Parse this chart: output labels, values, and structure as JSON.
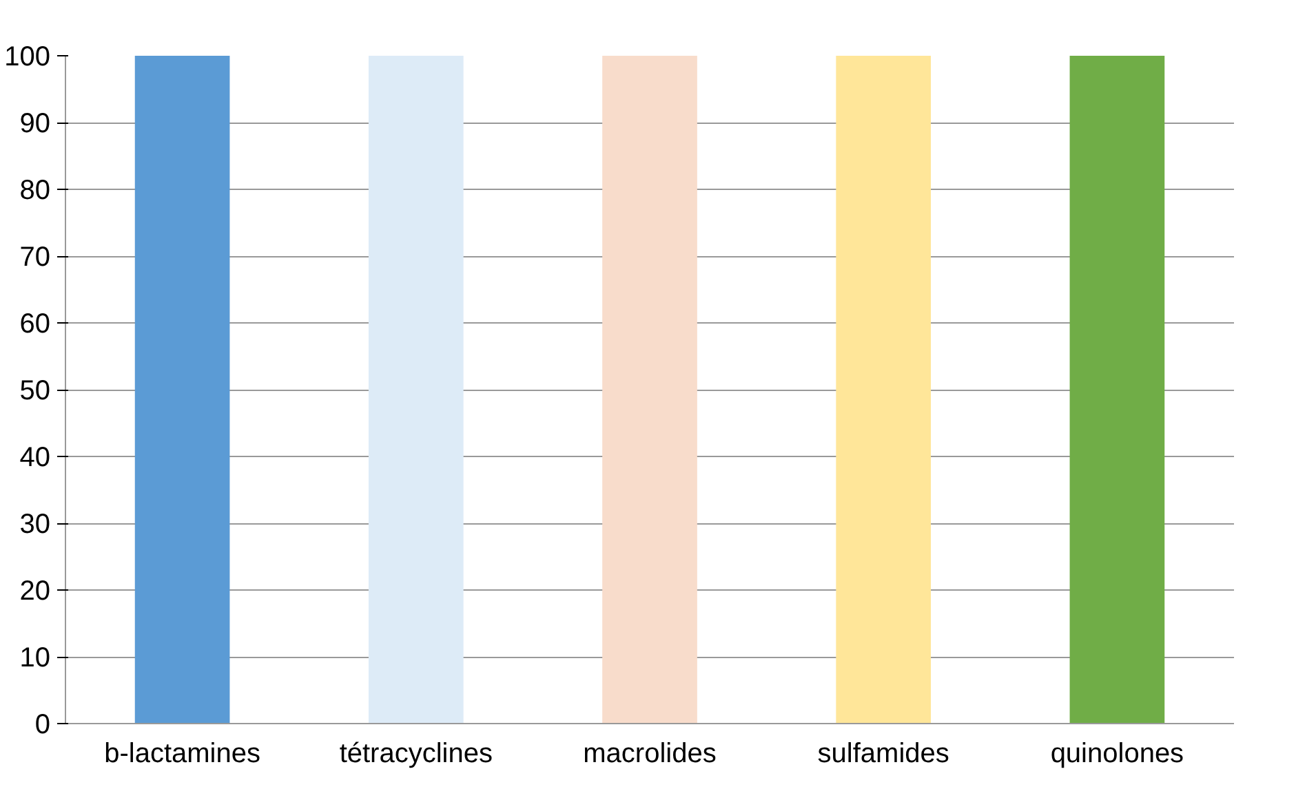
{
  "chart_data": {
    "type": "bar",
    "categories": [
      "b-lactamines",
      "tétracyclines",
      "macrolides",
      "sulfamides",
      "quinolones"
    ],
    "values": [
      100,
      100,
      100,
      100,
      100
    ],
    "colors": [
      "#5b9bd5",
      "#ddebf7",
      "#f8dccb",
      "#ffe699",
      "#70ad47"
    ],
    "ylim": [
      0,
      100
    ],
    "yticks": [
      0,
      10,
      20,
      30,
      40,
      50,
      60,
      70,
      80,
      90,
      100
    ],
    "grid": "y"
  }
}
